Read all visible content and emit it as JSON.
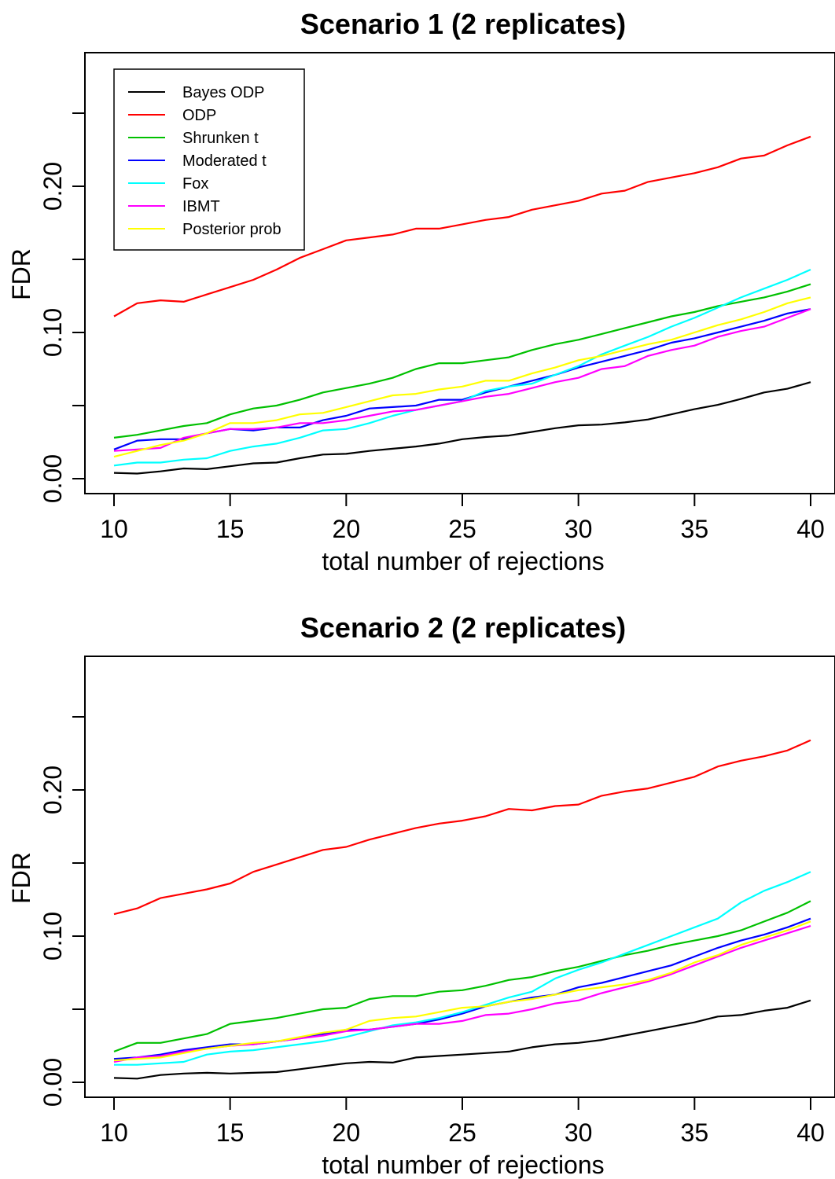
{
  "chart_data": [
    {
      "type": "line",
      "title": "Scenario 1 (2 replicates)",
      "xlabel": "total number of rejections",
      "ylabel": "FDR",
      "xlim": [
        10,
        40
      ],
      "ylim": [
        0,
        0.25
      ],
      "xticks": [
        "10",
        "15",
        "20",
        "25",
        "30",
        "35",
        "40"
      ],
      "yticks": [
        "0.00",
        "0.10",
        "0.20"
      ],
      "grid": false,
      "legend_position": "top-left",
      "x": [
        10,
        11,
        12,
        13,
        14,
        15,
        16,
        17,
        18,
        19,
        20,
        21,
        22,
        23,
        24,
        25,
        26,
        27,
        28,
        29,
        30,
        31,
        32,
        33,
        34,
        35,
        36,
        37,
        38,
        39,
        40
      ],
      "series": [
        {
          "name": "Bayes ODP",
          "color": "#000000",
          "values": [
            0.004,
            0.0035,
            0.005,
            0.007,
            0.0065,
            0.0085,
            0.0105,
            0.011,
            0.014,
            0.0165,
            0.017,
            0.019,
            0.0205,
            0.022,
            0.024,
            0.027,
            0.0285,
            0.0295,
            0.032,
            0.0345,
            0.0365,
            0.037,
            0.0385,
            0.0405,
            0.044,
            0.0475,
            0.0505,
            0.0545,
            0.059,
            0.0615,
            0.066
          ]
        },
        {
          "name": "ODP",
          "color": "#ff0000",
          "values": [
            0.111,
            0.12,
            0.122,
            0.121,
            0.126,
            0.131,
            0.136,
            0.143,
            0.151,
            0.157,
            0.163,
            0.165,
            0.167,
            0.171,
            0.171,
            0.174,
            0.177,
            0.179,
            0.184,
            0.187,
            0.19,
            0.195,
            0.197,
            0.203,
            0.206,
            0.209,
            0.213,
            0.219,
            0.221,
            0.228,
            0.234
          ]
        },
        {
          "name": "Shrunken t",
          "color": "#00c000",
          "values": [
            0.028,
            0.03,
            0.033,
            0.036,
            0.038,
            0.044,
            0.048,
            0.05,
            0.054,
            0.059,
            0.062,
            0.065,
            0.069,
            0.075,
            0.079,
            0.079,
            0.081,
            0.083,
            0.088,
            0.092,
            0.095,
            0.099,
            0.103,
            0.107,
            0.111,
            0.114,
            0.118,
            0.121,
            0.124,
            0.128,
            0.133
          ]
        },
        {
          "name": "Moderated t",
          "color": "#0000ff",
          "values": [
            0.02,
            0.026,
            0.027,
            0.027,
            0.031,
            0.034,
            0.033,
            0.035,
            0.035,
            0.04,
            0.043,
            0.048,
            0.049,
            0.05,
            0.054,
            0.054,
            0.059,
            0.063,
            0.067,
            0.071,
            0.076,
            0.08,
            0.084,
            0.088,
            0.093,
            0.096,
            0.1,
            0.104,
            0.108,
            0.113,
            0.116
          ]
        },
        {
          "name": "Fox",
          "color": "#00ffff",
          "values": [
            0.009,
            0.011,
            0.011,
            0.013,
            0.014,
            0.019,
            0.022,
            0.024,
            0.028,
            0.033,
            0.034,
            0.038,
            0.043,
            0.047,
            0.05,
            0.053,
            0.06,
            0.063,
            0.065,
            0.071,
            0.077,
            0.085,
            0.091,
            0.097,
            0.104,
            0.11,
            0.117,
            0.124,
            0.13,
            0.136,
            0.143
          ]
        },
        {
          "name": "IBMT",
          "color": "#ff00ff",
          "values": [
            0.019,
            0.02,
            0.021,
            0.028,
            0.031,
            0.034,
            0.034,
            0.035,
            0.038,
            0.038,
            0.04,
            0.043,
            0.046,
            0.047,
            0.05,
            0.053,
            0.056,
            0.058,
            0.062,
            0.066,
            0.069,
            0.075,
            0.077,
            0.084,
            0.088,
            0.091,
            0.097,
            0.101,
            0.104,
            0.11,
            0.116
          ]
        },
        {
          "name": "Posterior prob",
          "color": "#ffff00",
          "values": [
            0.015,
            0.019,
            0.023,
            0.026,
            0.031,
            0.038,
            0.038,
            0.04,
            0.044,
            0.045,
            0.049,
            0.053,
            0.057,
            0.058,
            0.061,
            0.063,
            0.067,
            0.067,
            0.072,
            0.076,
            0.081,
            0.084,
            0.088,
            0.092,
            0.095,
            0.1,
            0.105,
            0.109,
            0.114,
            0.12,
            0.124
          ]
        }
      ]
    },
    {
      "type": "line",
      "title": "Scenario 2 (2 replicates)",
      "xlabel": "total number of rejections",
      "ylabel": "FDR",
      "xlim": [
        10,
        40
      ],
      "ylim": [
        0,
        0.25
      ],
      "xticks": [
        "10",
        "15",
        "20",
        "25",
        "30",
        "35",
        "40"
      ],
      "yticks": [
        "0.00",
        "0.10",
        "0.20"
      ],
      "grid": false,
      "legend_position": "",
      "x": [
        10,
        11,
        12,
        13,
        14,
        15,
        16,
        17,
        18,
        19,
        20,
        21,
        22,
        23,
        24,
        25,
        26,
        27,
        28,
        29,
        30,
        31,
        32,
        33,
        34,
        35,
        36,
        37,
        38,
        39,
        40
      ],
      "series": [
        {
          "name": "Bayes ODP",
          "color": "#000000",
          "values": [
            0.003,
            0.0025,
            0.005,
            0.006,
            0.0065,
            0.006,
            0.0065,
            0.007,
            0.009,
            0.011,
            0.013,
            0.014,
            0.0135,
            0.017,
            0.018,
            0.019,
            0.02,
            0.021,
            0.024,
            0.026,
            0.027,
            0.029,
            0.032,
            0.035,
            0.038,
            0.041,
            0.045,
            0.046,
            0.049,
            0.051,
            0.056
          ]
        },
        {
          "name": "ODP",
          "color": "#ff0000",
          "values": [
            0.115,
            0.119,
            0.126,
            0.129,
            0.132,
            0.136,
            0.144,
            0.149,
            0.154,
            0.159,
            0.161,
            0.166,
            0.17,
            0.174,
            0.177,
            0.179,
            0.182,
            0.187,
            0.186,
            0.189,
            0.19,
            0.196,
            0.199,
            0.201,
            0.205,
            0.209,
            0.216,
            0.22,
            0.223,
            0.227,
            0.234
          ]
        },
        {
          "name": "Shrunken t",
          "color": "#00c000",
          "values": [
            0.021,
            0.027,
            0.027,
            0.03,
            0.033,
            0.04,
            0.042,
            0.044,
            0.047,
            0.05,
            0.051,
            0.057,
            0.059,
            0.059,
            0.062,
            0.063,
            0.066,
            0.07,
            0.072,
            0.076,
            0.079,
            0.083,
            0.087,
            0.09,
            0.094,
            0.097,
            0.1,
            0.104,
            0.11,
            0.116,
            0.124
          ]
        },
        {
          "name": "Moderated t",
          "color": "#0000ff",
          "values": [
            0.016,
            0.017,
            0.019,
            0.022,
            0.024,
            0.026,
            0.026,
            0.028,
            0.03,
            0.033,
            0.036,
            0.036,
            0.038,
            0.04,
            0.043,
            0.047,
            0.052,
            0.055,
            0.058,
            0.06,
            0.065,
            0.068,
            0.072,
            0.076,
            0.08,
            0.086,
            0.092,
            0.097,
            0.101,
            0.106,
            0.112
          ]
        },
        {
          "name": "Fox",
          "color": "#00ffff",
          "values": [
            0.012,
            0.012,
            0.013,
            0.014,
            0.019,
            0.021,
            0.022,
            0.024,
            0.026,
            0.028,
            0.031,
            0.035,
            0.039,
            0.041,
            0.044,
            0.048,
            0.053,
            0.058,
            0.062,
            0.071,
            0.077,
            0.082,
            0.088,
            0.094,
            0.1,
            0.106,
            0.112,
            0.123,
            0.131,
            0.137,
            0.144
          ]
        },
        {
          "name": "IBMT",
          "color": "#ff00ff",
          "values": [
            0.014,
            0.017,
            0.018,
            0.021,
            0.023,
            0.025,
            0.026,
            0.028,
            0.03,
            0.032,
            0.035,
            0.036,
            0.038,
            0.04,
            0.04,
            0.042,
            0.046,
            0.047,
            0.05,
            0.054,
            0.056,
            0.061,
            0.065,
            0.069,
            0.074,
            0.08,
            0.086,
            0.092,
            0.097,
            0.102,
            0.107
          ]
        },
        {
          "name": "Posterior prob",
          "color": "#ffff00",
          "values": [
            0.015,
            0.016,
            0.017,
            0.02,
            0.023,
            0.025,
            0.027,
            0.028,
            0.031,
            0.034,
            0.036,
            0.042,
            0.044,
            0.045,
            0.048,
            0.051,
            0.052,
            0.055,
            0.057,
            0.06,
            0.063,
            0.065,
            0.067,
            0.07,
            0.075,
            0.082,
            0.087,
            0.094,
            0.099,
            0.104,
            0.11
          ]
        }
      ]
    }
  ]
}
